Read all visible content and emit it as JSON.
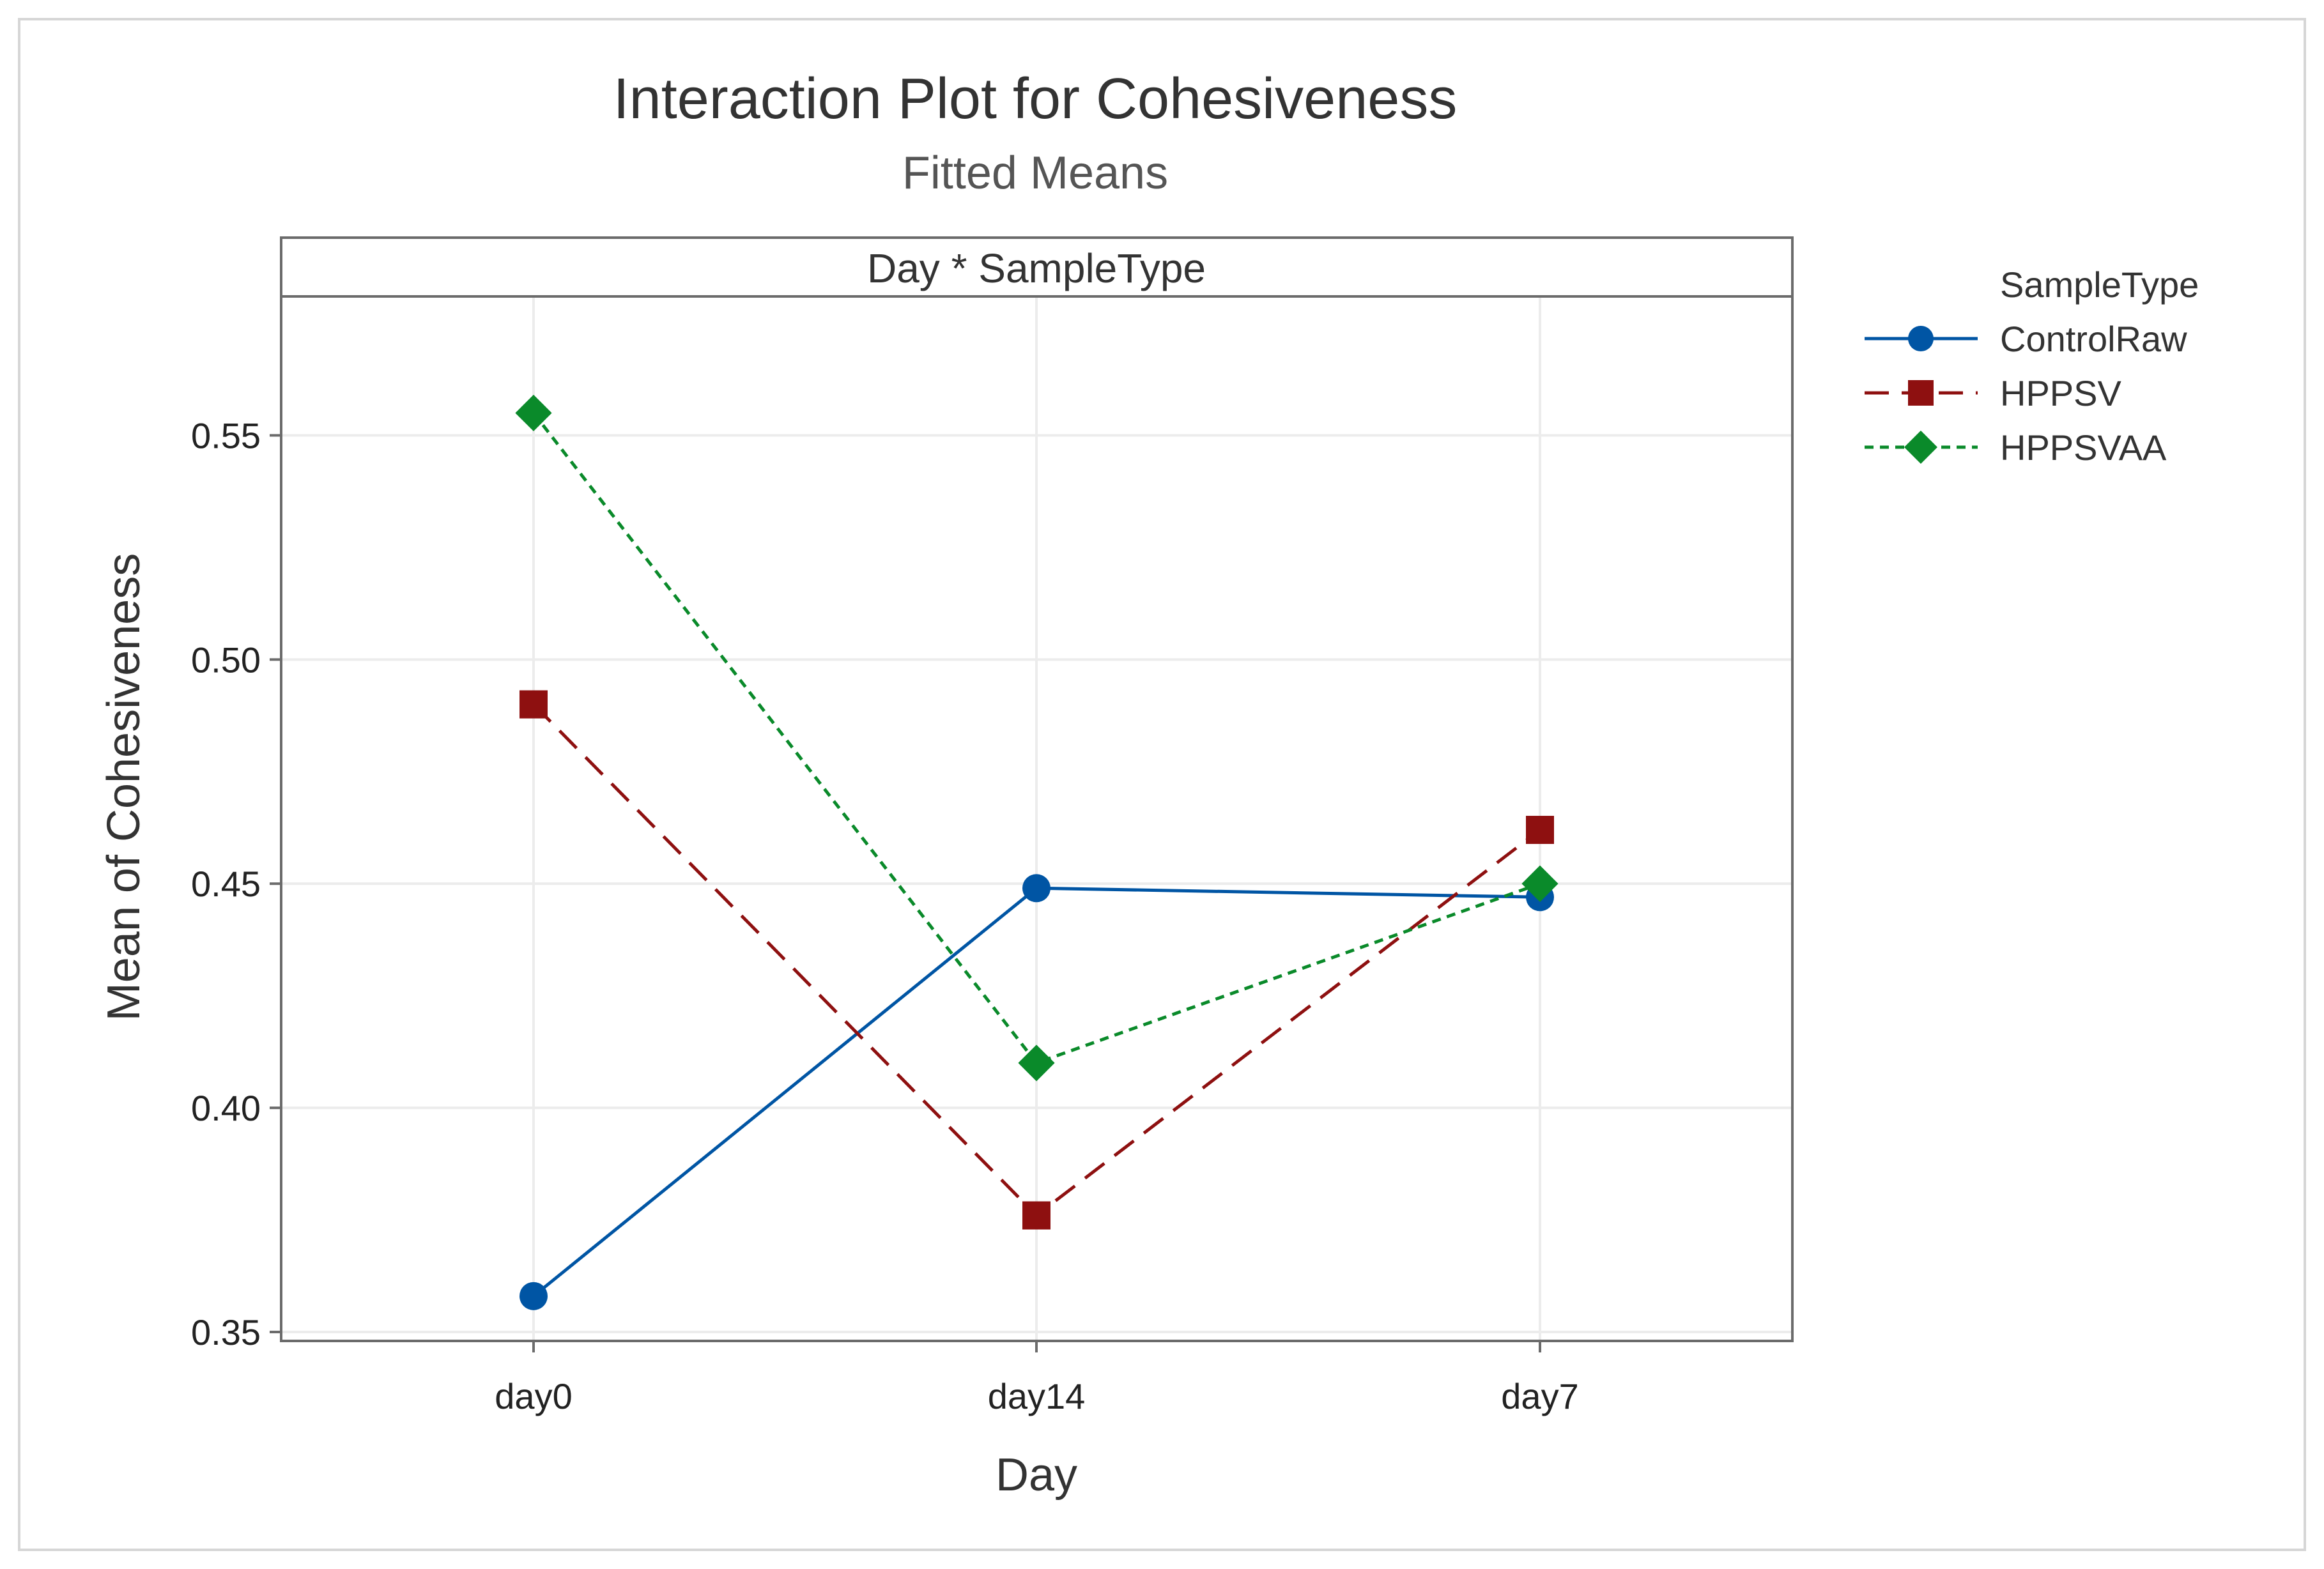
{
  "chart_data": {
    "type": "line",
    "title": "Interaction Plot for Cohesiveness",
    "subtitle": "Fitted Means",
    "panel_label": "Day * SampleType",
    "xlabel": "Day",
    "ylabel": "Mean of Cohesiveness",
    "categories": [
      "day0",
      "day14",
      "day7"
    ],
    "ylim": [
      0.348,
      0.581
    ],
    "yticks": [
      0.35,
      0.4,
      0.45,
      0.5,
      0.55
    ],
    "ytick_labels": [
      "0.35",
      "0.40",
      "0.45",
      "0.50",
      "0.55"
    ],
    "grid": true,
    "legend_title": "SampleType",
    "legend_position": "right",
    "series": [
      {
        "name": "ControlRaw",
        "values": [
          0.358,
          0.449,
          0.447
        ],
        "color": "#0055A4",
        "marker": "circle",
        "line": "solid"
      },
      {
        "name": "HPPSV",
        "values": [
          0.49,
          0.376,
          0.462
        ],
        "color": "#8E1010",
        "marker": "square",
        "line": "dashed"
      },
      {
        "name": "HPPSVAA",
        "values": [
          0.555,
          0.41,
          0.45
        ],
        "color": "#0A8A2A",
        "marker": "diamond",
        "line": "dotted"
      }
    ]
  }
}
